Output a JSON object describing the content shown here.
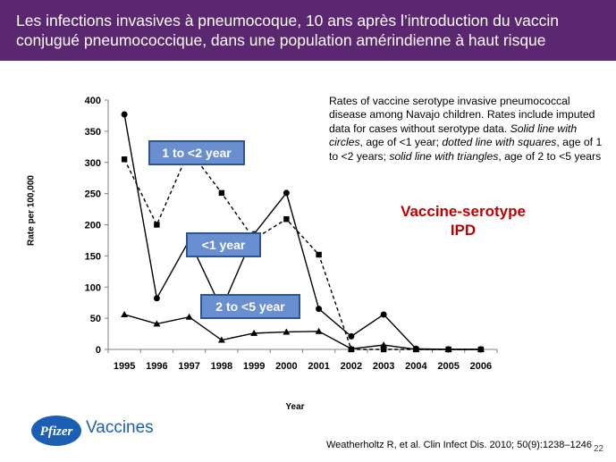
{
  "slide": {
    "title": "Les infections invasives à pneumocoque, 10 ans après l’introduction du vaccin conjugué pneumococcique, dans une population amérindienne à haut risque",
    "description_plain_1": "Rates of vaccine serotype invasive pneumococcal disease among Navajo children. Rates include imputed data for cases without serotype data. ",
    "description_italic_1": "Solid line with circles",
    "description_plain_2": ", age of <1 year; ",
    "description_italic_2": "dotted line with squares",
    "description_plain_3": ", age of 1 to <2 years; ",
    "description_italic_3": "solid line with triangles",
    "description_plain_4": ", age of 2 to <5 years",
    "big_label_line1": "Vaccine-serotype",
    "big_label_line2": "IPD",
    "logo_text": "Vaccines",
    "logo_mark": "Pfizer",
    "citation": "Weatherholtz  R, et al. Clin Infect  Dis. 2010; 50(9):1238–1246",
    "page_number": "22",
    "colors": {
      "header_bg": "#5b2770",
      "badge_bg": "#6a8fd0",
      "badge_border": "#2f5597",
      "big_label": "#c00000",
      "logo": "#1a5fb4"
    }
  },
  "chart_data": {
    "type": "line",
    "xlabel": "Year",
    "ylabel": "Rate per 100,000",
    "ylim": [
      0,
      400
    ],
    "yticks": [
      0,
      50,
      100,
      150,
      200,
      250,
      300,
      350,
      400
    ],
    "categories": [
      "1995",
      "1996",
      "1997",
      "1998",
      "1999",
      "2000",
      "2001",
      "2002",
      "2003",
      "2004",
      "2005",
      "2006"
    ],
    "series": [
      {
        "name": "<1 year",
        "style": "solid",
        "marker": "circle",
        "values": [
          377,
          82,
          175,
          65,
          185,
          251,
          65,
          21,
          56,
          1,
          0,
          0
        ]
      },
      {
        "name": "1 to <2 year",
        "style": "dashed",
        "marker": "square",
        "values": [
          305,
          200,
          320,
          251,
          177,
          209,
          152,
          0,
          0,
          0,
          0,
          0
        ]
      },
      {
        "name": "2 to <5 year",
        "style": "solid",
        "marker": "triangle",
        "values": [
          56,
          41,
          52,
          15,
          26,
          28,
          29,
          1,
          7,
          0,
          0,
          0
        ]
      }
    ],
    "grid": false
  }
}
